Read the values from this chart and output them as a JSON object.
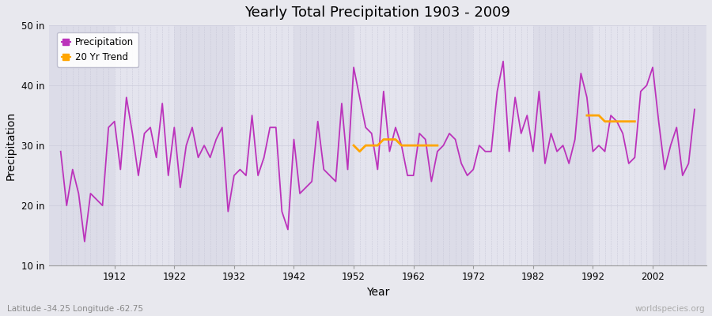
{
  "title": "Yearly Total Precipitation 1903 - 2009",
  "xlabel": "Year",
  "ylabel": "Precipitation",
  "lat_lon_label": "Latitude -34.25 Longitude -62.75",
  "source_label": "worldspecies.org",
  "ylim": [
    10,
    50
  ],
  "yticks": [
    10,
    20,
    30,
    40,
    50
  ],
  "ytick_labels": [
    "10 in",
    "20 in",
    "30 in",
    "40 in",
    "50 in"
  ],
  "fig_bg_color": "#e8e8ee",
  "band_color_odd": "#dcdce8",
  "band_color_even": "#e4e4ee",
  "precip_color": "#bb33bb",
  "trend_color": "#ffa500",
  "xlim_start": 1901,
  "xlim_end": 2011,
  "xticks": [
    1912,
    1922,
    1932,
    1942,
    1952,
    1962,
    1972,
    1982,
    1992,
    2002
  ],
  "decade_bounds": [
    1901,
    1912,
    1922,
    1932,
    1942,
    1952,
    1962,
    1972,
    1982,
    1992,
    2002,
    2011
  ],
  "years": [
    1903,
    1904,
    1905,
    1906,
    1907,
    1908,
    1909,
    1910,
    1911,
    1912,
    1913,
    1914,
    1915,
    1916,
    1917,
    1918,
    1919,
    1920,
    1921,
    1922,
    1923,
    1924,
    1925,
    1926,
    1927,
    1928,
    1929,
    1930,
    1931,
    1932,
    1933,
    1934,
    1935,
    1936,
    1937,
    1938,
    1939,
    1940,
    1941,
    1942,
    1943,
    1944,
    1945,
    1946,
    1947,
    1948,
    1949,
    1950,
    1951,
    1952,
    1953,
    1954,
    1955,
    1956,
    1957,
    1958,
    1959,
    1960,
    1961,
    1962,
    1963,
    1964,
    1965,
    1966,
    1967,
    1968,
    1969,
    1970,
    1971,
    1972,
    1973,
    1974,
    1975,
    1976,
    1977,
    1978,
    1979,
    1980,
    1981,
    1982,
    1983,
    1984,
    1985,
    1986,
    1987,
    1988,
    1989,
    1990,
    1991,
    1992,
    1993,
    1994,
    1995,
    1996,
    1997,
    1998,
    1999,
    2000,
    2001,
    2002,
    2003,
    2004,
    2005,
    2006,
    2007,
    2008,
    2009
  ],
  "precip": [
    29,
    20,
    26,
    22,
    14,
    22,
    21,
    20,
    33,
    34,
    26,
    38,
    32,
    25,
    32,
    33,
    28,
    37,
    25,
    33,
    23,
    30,
    33,
    28,
    30,
    28,
    31,
    33,
    19,
    25,
    26,
    25,
    35,
    25,
    28,
    33,
    33,
    19,
    16,
    31,
    22,
    23,
    24,
    34,
    26,
    25,
    24,
    37,
    26,
    43,
    38,
    33,
    32,
    26,
    39,
    29,
    33,
    30,
    25,
    25,
    32,
    31,
    24,
    29,
    30,
    32,
    31,
    27,
    25,
    26,
    30,
    29,
    29,
    39,
    44,
    29,
    38,
    32,
    35,
    29,
    39,
    27,
    32,
    29,
    30,
    27,
    31,
    42,
    38,
    29,
    30,
    29,
    35,
    34,
    32,
    27,
    28,
    39,
    40,
    43,
    34,
    26,
    30,
    33,
    25,
    27,
    36
  ],
  "trend_seg1_years": [
    1952,
    1953,
    1954,
    1955,
    1956,
    1957,
    1958,
    1959,
    1960,
    1961,
    1962,
    1963,
    1964,
    1965,
    1966
  ],
  "trend_seg1_vals": [
    30,
    29,
    30,
    30,
    30,
    31,
    31,
    31,
    30,
    30,
    30,
    30,
    30,
    30,
    30
  ],
  "trend_seg2_years": [
    1991,
    1992,
    1993,
    1994,
    1995,
    1996,
    1997,
    1998,
    1999
  ],
  "trend_seg2_vals": [
    35,
    35,
    35,
    34,
    34,
    34,
    34,
    34,
    34
  ]
}
